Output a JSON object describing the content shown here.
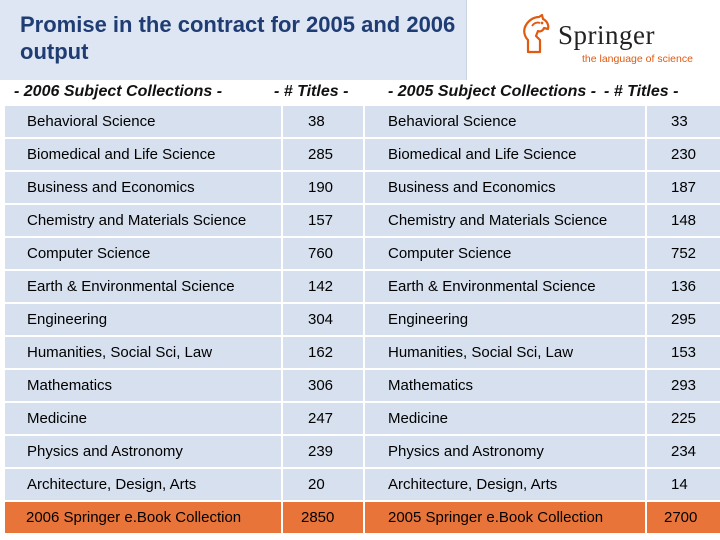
{
  "slide": {
    "title": "Promise in the contract for 2005 and 2006 output"
  },
  "logo": {
    "name": "Springer",
    "tagline": "the language of science"
  },
  "columns": {
    "col1": "- 2006 Subject Collections -",
    "col2": "- # Titles -",
    "col3": "- 2005 Subject Collections -",
    "col4": "- # Titles -"
  },
  "rows": [
    {
      "subject_2006": "Behavioral Science",
      "titles_2006": "38",
      "subject_2005": "Behavioral Science",
      "titles_2005": "33"
    },
    {
      "subject_2006": "Biomedical and Life Science",
      "titles_2006": "285",
      "subject_2005": "Biomedical and Life Science",
      "titles_2005": "230"
    },
    {
      "subject_2006": "Business and Economics",
      "titles_2006": "190",
      "subject_2005": "Business and Economics",
      "titles_2005": "187"
    },
    {
      "subject_2006": "Chemistry and Materials Science",
      "titles_2006": "157",
      "subject_2005": "Chemistry and Materials Science",
      "titles_2005": "148"
    },
    {
      "subject_2006": "Computer Science",
      "titles_2006": "760",
      "subject_2005": "Computer Science",
      "titles_2005": "752"
    },
    {
      "subject_2006": "Earth & Environmental Science",
      "titles_2006": "142",
      "subject_2005": "Earth & Environmental Science",
      "titles_2005": "136"
    },
    {
      "subject_2006": "Engineering",
      "titles_2006": "304",
      "subject_2005": "Engineering",
      "titles_2005": "295"
    },
    {
      "subject_2006": "Humanities, Social Sci, Law",
      "titles_2006": "162",
      "subject_2005": "Humanities, Social Sci, Law",
      "titles_2005": "153"
    },
    {
      "subject_2006": "Mathematics",
      "titles_2006": "306",
      "subject_2005": "Mathematics",
      "titles_2005": "293"
    },
    {
      "subject_2006": "Medicine",
      "titles_2006": "247",
      "subject_2005": "Medicine",
      "titles_2005": "225"
    },
    {
      "subject_2006": "Physics and Astronomy",
      "titles_2006": "239",
      "subject_2005": "Physics and Astronomy",
      "titles_2005": "234"
    },
    {
      "subject_2006": "Architecture, Design, Arts",
      "titles_2006": "20",
      "subject_2005": "Architecture, Design, Arts",
      "titles_2005": "14"
    }
  ],
  "totals": {
    "subject_2006": "2006 Springer e.Book Collection",
    "titles_2006": "2850",
    "subject_2005": "2005 Springer e.Book Collection",
    "titles_2005": "2700"
  },
  "colors": {
    "title_text": "#1f3c73",
    "title_bg": "#dde6f2",
    "row_bg": "#d6e0ee",
    "total_bg": "#e8743a",
    "logo_tagline": "#e05a10"
  }
}
